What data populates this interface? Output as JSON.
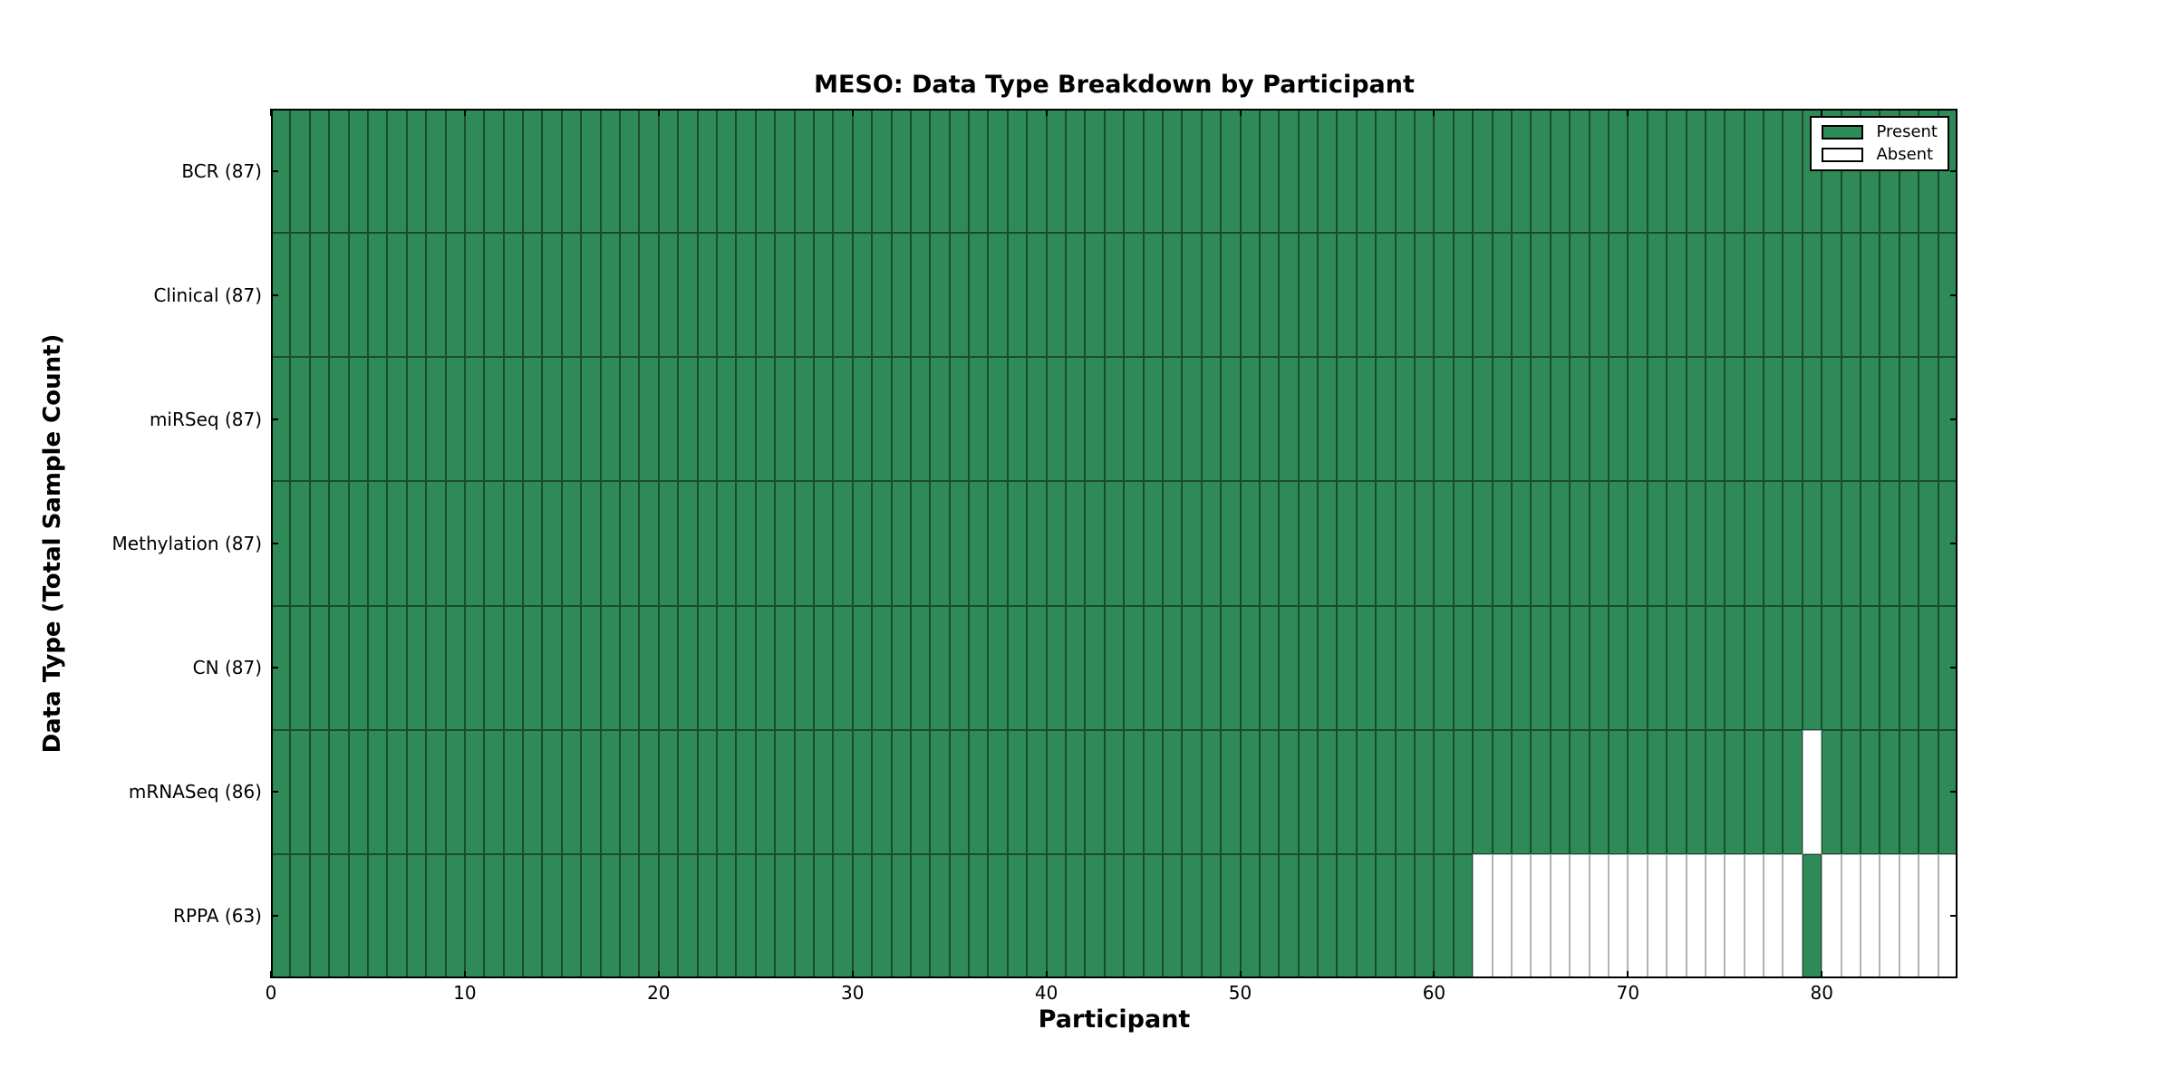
{
  "title": "MESO: Data Type Breakdown by Participant",
  "axes": {
    "xlabel": "Participant",
    "ylabel": "Data Type (Total Sample Count)",
    "x_ticks": [
      0,
      10,
      20,
      30,
      40,
      50,
      60,
      70,
      80
    ],
    "xlim": [
      0,
      87
    ]
  },
  "legend": {
    "items": [
      {
        "label": "Present",
        "color": "#2e8b57"
      },
      {
        "label": "Absent",
        "color": "#ffffff"
      }
    ]
  },
  "colors": {
    "present": "#2e8b57",
    "absent": "#ffffff",
    "present_edge": "rgba(0,0,0,0.45)",
    "absent_edge": "#b3b3b3",
    "frame": "#000000",
    "background": "#ffffff"
  },
  "chart_data": {
    "type": "heatmap",
    "title": "MESO: Data Type Breakdown by Participant",
    "xlabel": "Participant",
    "ylabel": "Data Type (Total Sample Count)",
    "n_participants": 87,
    "xlim": [
      0,
      87
    ],
    "x_ticks": [
      0,
      10,
      20,
      30,
      40,
      50,
      60,
      70,
      80
    ],
    "legend_position": "upper right",
    "grid": false,
    "rows": [
      {
        "label": "BCR",
        "display": "BCR (87)",
        "total_present": 87,
        "absent_participants": []
      },
      {
        "label": "Clinical",
        "display": "Clinical (87)",
        "total_present": 87,
        "absent_participants": []
      },
      {
        "label": "miRSeq",
        "display": "miRSeq (87)",
        "total_present": 87,
        "absent_participants": []
      },
      {
        "label": "Methylation",
        "display": "Methylation (87)",
        "total_present": 87,
        "absent_participants": []
      },
      {
        "label": "CN",
        "display": "CN (87)",
        "total_present": 87,
        "absent_participants": []
      },
      {
        "label": "mRNASeq",
        "display": "mRNASeq (86)",
        "total_present": 86,
        "absent_participants": [
          79
        ]
      },
      {
        "label": "RPPA",
        "display": "RPPA (63)",
        "total_present": 63,
        "absent_participants": [
          62,
          63,
          64,
          65,
          66,
          67,
          68,
          69,
          70,
          71,
          72,
          73,
          74,
          75,
          76,
          77,
          78,
          80,
          81,
          82,
          83,
          84,
          85,
          86
        ]
      }
    ]
  }
}
